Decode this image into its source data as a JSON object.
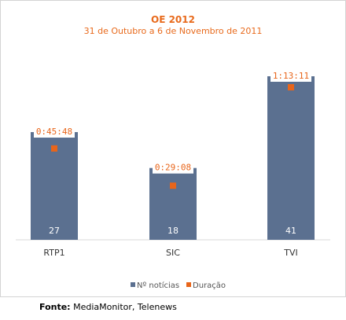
{
  "chart_data": {
    "type": "bar",
    "title": "OE 2012",
    "subtitle": "31 de Outubro a 6 de Novembro de 2011",
    "categories": [
      "RTP1",
      "SIC",
      "TVI"
    ],
    "series": [
      {
        "name": "Nº notícias",
        "values": [
          27,
          18,
          41
        ],
        "color": "#5b7090"
      },
      {
        "name": "Duração",
        "values": [
          "0:45:48",
          "0:29:08",
          "1:13:11"
        ],
        "seconds": [
          2748,
          1748,
          4391
        ],
        "color": "#e8651a"
      }
    ],
    "legend": "bottom-center",
    "grid": false
  },
  "source": {
    "label": "Fonte:",
    "text": "MediaMonitor, Telenews"
  }
}
